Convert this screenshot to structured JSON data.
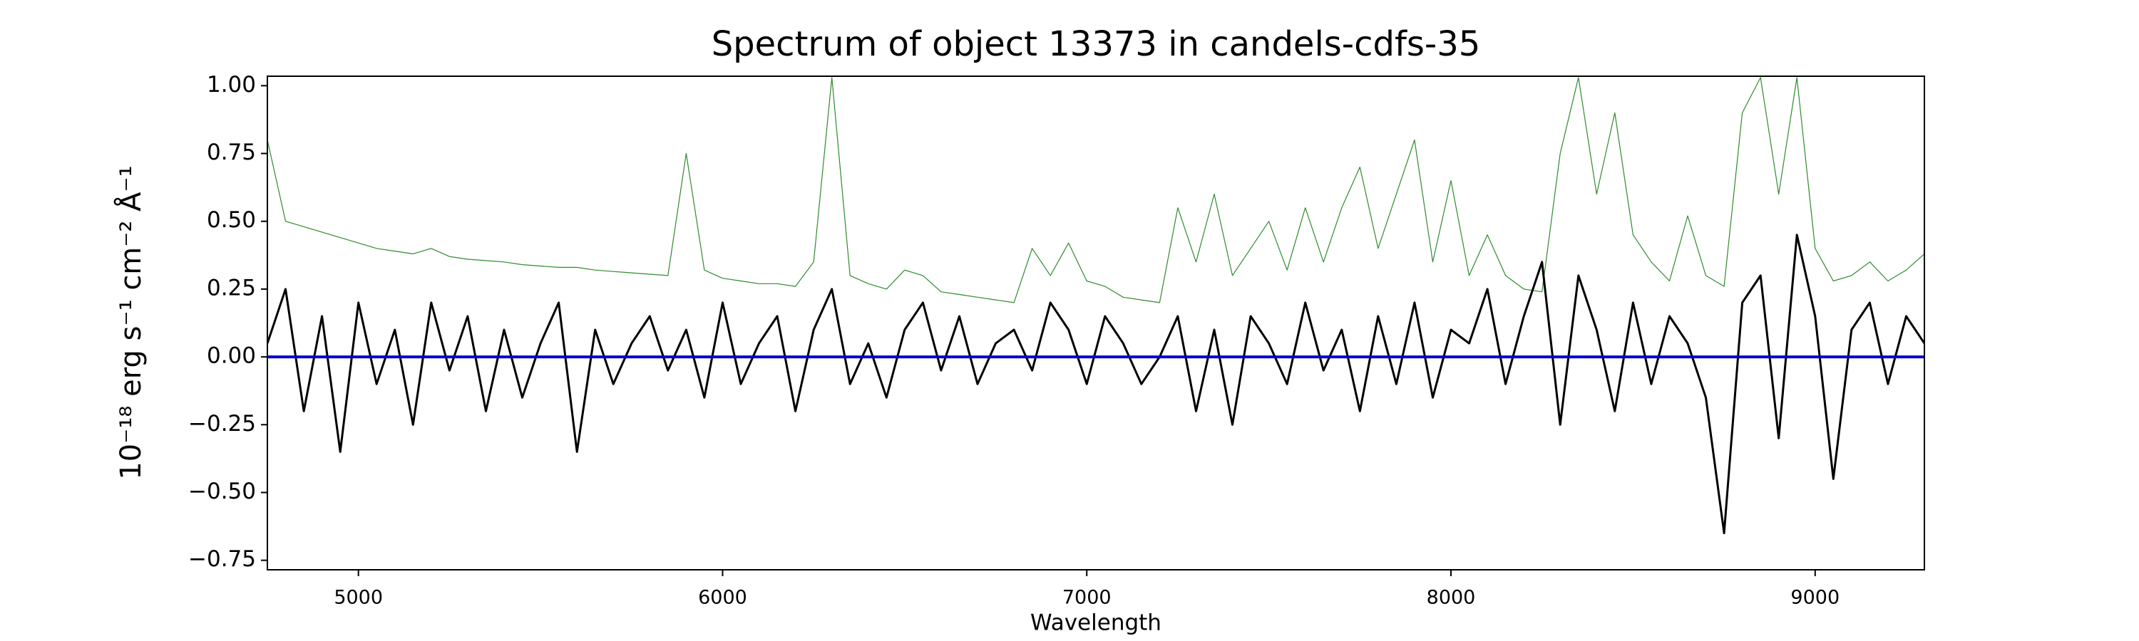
{
  "chart_data": {
    "type": "line",
    "title": "Spectrum of object 13373 in candels-cdfs-35",
    "x_label": "Wavelength",
    "y_label": "10⁻¹⁸ erg s⁻¹ cm⁻² Å⁻¹",
    "x": [
      4750,
      4800,
      4850,
      4900,
      4950,
      5000,
      5050,
      5100,
      5150,
      5200,
      5250,
      5300,
      5350,
      5400,
      5450,
      5500,
      5550,
      5600,
      5650,
      5700,
      5750,
      5800,
      5850,
      5900,
      5950,
      6000,
      6050,
      6100,
      6150,
      6200,
      6250,
      6300,
      6350,
      6400,
      6450,
      6500,
      6550,
      6600,
      6650,
      6700,
      6750,
      6800,
      6850,
      6900,
      6950,
      7000,
      7050,
      7100,
      7150,
      7200,
      7250,
      7300,
      7350,
      7400,
      7450,
      7500,
      7550,
      7600,
      7650,
      7700,
      7750,
      7800,
      7850,
      7900,
      7950,
      8000,
      8050,
      8100,
      8150,
      8200,
      8250,
      8300,
      8350,
      8400,
      8450,
      8500,
      8550,
      8600,
      8650,
      8700,
      8750,
      8800,
      8850,
      8900,
      8950,
      9000,
      9050,
      9100,
      9150,
      9200,
      9250,
      9300
    ],
    "series": [
      {
        "color": "#2e8b2e",
        "width": 1.2,
        "values": [
          0.8,
          0.5,
          0.48,
          0.46,
          0.44,
          0.42,
          0.4,
          0.39,
          0.38,
          0.4,
          0.37,
          0.36,
          0.355,
          0.35,
          0.34,
          0.335,
          0.33,
          0.33,
          0.32,
          0.315,
          0.31,
          0.305,
          0.3,
          0.75,
          0.32,
          0.29,
          0.28,
          0.27,
          0.27,
          0.26,
          0.35,
          1.03,
          0.3,
          0.27,
          0.25,
          0.32,
          0.3,
          0.24,
          0.23,
          0.22,
          0.21,
          0.2,
          0.4,
          0.3,
          0.42,
          0.28,
          0.26,
          0.22,
          0.21,
          0.2,
          0.55,
          0.35,
          0.6,
          0.3,
          0.4,
          0.5,
          0.32,
          0.55,
          0.35,
          0.55,
          0.7,
          0.4,
          0.6,
          0.8,
          0.35,
          0.65,
          0.3,
          0.45,
          0.3,
          0.25,
          0.24,
          0.75,
          1.03,
          0.6,
          0.9,
          0.45,
          0.35,
          0.28,
          0.52,
          0.3,
          0.26,
          0.9,
          1.03,
          0.6,
          1.03,
          0.4,
          0.28,
          0.3,
          0.35,
          0.28,
          0.32,
          0.38
        ]
      },
      {
        "color": "#000000",
        "width": 3,
        "values": [
          0.05,
          0.25,
          -0.2,
          0.15,
          -0.35,
          0.2,
          -0.1,
          0.1,
          -0.25,
          0.2,
          -0.05,
          0.15,
          -0.2,
          0.1,
          -0.15,
          0.05,
          0.2,
          -0.35,
          0.1,
          -0.1,
          0.05,
          0.15,
          -0.05,
          0.1,
          -0.15,
          0.2,
          -0.1,
          0.05,
          0.15,
          -0.2,
          0.1,
          0.25,
          -0.1,
          0.05,
          -0.15,
          0.1,
          0.2,
          -0.05,
          0.15,
          -0.1,
          0.05,
          0.1,
          -0.05,
          0.2,
          0.1,
          -0.1,
          0.15,
          0.05,
          -0.1,
          0.0,
          0.15,
          -0.2,
          0.1,
          -0.25,
          0.15,
          0.05,
          -0.1,
          0.2,
          -0.05,
          0.1,
          -0.2,
          0.15,
          -0.1,
          0.2,
          -0.15,
          0.1,
          0.05,
          0.25,
          -0.1,
          0.15,
          0.35,
          -0.25,
          0.3,
          0.1,
          -0.2,
          0.2,
          -0.1,
          0.15,
          0.05,
          -0.15,
          -0.65,
          0.2,
          0.3,
          -0.3,
          0.45,
          0.15,
          -0.45,
          0.1,
          0.2,
          -0.1,
          0.15,
          0.05
        ]
      },
      {
        "color": "#0000cc",
        "width": 4,
        "values": [
          0,
          0,
          0,
          0,
          0,
          0,
          0,
          0,
          0,
          0,
          0,
          0,
          0,
          0,
          0,
          0,
          0,
          0,
          0,
          0,
          0,
          0,
          0,
          0,
          0,
          0,
          0,
          0,
          0,
          0,
          0,
          0,
          0,
          0,
          0,
          0,
          0,
          0,
          0,
          0,
          0,
          0,
          0,
          0,
          0,
          0,
          0,
          0,
          0,
          0,
          0,
          0,
          0,
          0,
          0,
          0,
          0,
          0,
          0,
          0,
          0,
          0,
          0,
          0,
          0,
          0,
          0,
          0,
          0,
          0,
          0,
          0,
          0,
          0,
          0,
          0,
          0,
          0,
          0,
          0,
          0,
          0,
          0,
          0,
          0,
          0,
          0,
          0,
          0,
          0,
          0,
          0
        ]
      }
    ],
    "xlim": [
      4750,
      9300
    ],
    "ylim": [
      -0.785,
      1.035
    ],
    "xticks": [
      5000,
      6000,
      7000,
      8000,
      9000
    ],
    "yticks": [
      {
        "value": -0.75,
        "label": "−0.75"
      },
      {
        "value": -0.5,
        "label": "−0.50"
      },
      {
        "value": -0.25,
        "label": "−0.25"
      },
      {
        "value": 0,
        "label": "0.00"
      },
      {
        "value": 0.25,
        "label": "0.25"
      },
      {
        "value": 0.5,
        "label": "0.50"
      },
      {
        "value": 0.75,
        "label": "0.75"
      },
      {
        "value": 1,
        "label": "1.00"
      }
    ],
    "grid": false
  }
}
